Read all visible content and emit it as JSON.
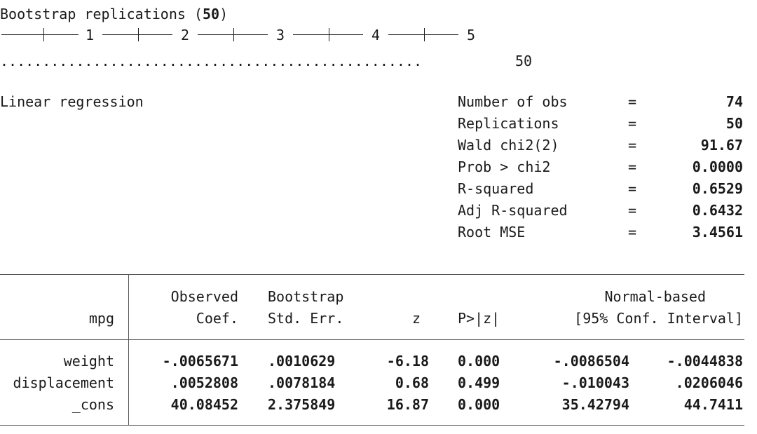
{
  "header": {
    "prefix": "Bootstrap replications (",
    "count": "50",
    "suffix": ")"
  },
  "ruler": {
    "marks": [
      "1",
      "2",
      "3",
      "4",
      "5"
    ]
  },
  "progress": {
    "dots": "..................................................",
    "count": "50"
  },
  "model": {
    "title": "Linear regression"
  },
  "stats": [
    {
      "label": "Number of obs",
      "eq": "=",
      "value": "74"
    },
    {
      "label": "Replications",
      "eq": "=",
      "value": "50"
    },
    {
      "label": "Wald chi2(2)",
      "eq": "=",
      "value": "91.67"
    },
    {
      "label": "Prob > chi2",
      "eq": "=",
      "value": "0.0000"
    },
    {
      "label": "R-squared",
      "eq": "=",
      "value": "0.6529"
    },
    {
      "label": "Adj R-squared",
      "eq": "=",
      "value": "0.6432"
    },
    {
      "label": "Root MSE",
      "eq": "=",
      "value": "3.4561"
    }
  ],
  "table": {
    "depvar": "mpg",
    "head1": {
      "coef": "Observed",
      "se": "Bootstrap",
      "ci": "Normal-based"
    },
    "head2": {
      "coef": "Coef.",
      "se": "Std. Err.",
      "z": "z",
      "p": "P>|z|",
      "ci": "[95% Conf. Interval]"
    },
    "rows": [
      {
        "name": "weight",
        "coef": "-.0065671",
        "se": ".0010629",
        "z": "-6.18",
        "p": "0.000",
        "lo": "-.0086504",
        "hi": "-.0044838"
      },
      {
        "name": "displacement",
        "coef": ".0052808",
        "se": ".0078184",
        "z": "0.68",
        "p": "0.499",
        "lo": "-.010043",
        "hi": ".0206046"
      },
      {
        "name": "_cons",
        "coef": "40.08452",
        "se": "2.375849",
        "z": "16.87",
        "p": "0.000",
        "lo": "35.42794",
        "hi": "44.7411"
      }
    ]
  }
}
